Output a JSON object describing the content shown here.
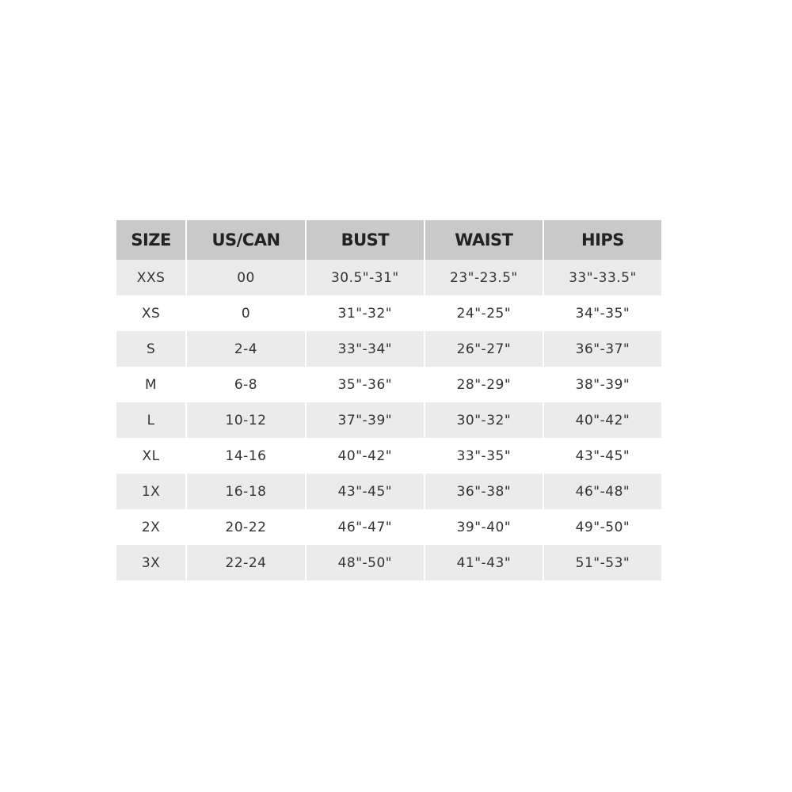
{
  "size_chart": {
    "columns": [
      "SIZE",
      "US/CAN",
      "BUST",
      "WAIST",
      "HIPS"
    ],
    "rows": [
      [
        "XXS",
        "00",
        "30.5\"-31\"",
        "23\"-23.5\"",
        "33\"-33.5\""
      ],
      [
        "XS",
        "0",
        "31\"-32\"",
        "24\"-25\"",
        "34\"-35\""
      ],
      [
        "S",
        "2-4",
        "33\"-34\"",
        "26\"-27\"",
        "36\"-37\""
      ],
      [
        "M",
        "6-8",
        "35\"-36\"",
        "28\"-29\"",
        "38\"-39\""
      ],
      [
        "L",
        "10-12",
        "37\"-39\"",
        "30\"-32\"",
        "40\"-42\""
      ],
      [
        "XL",
        "14-16",
        "40\"-42\"",
        "33\"-35\"",
        "43\"-45\""
      ],
      [
        "1X",
        "16-18",
        "43\"-45\"",
        "36\"-38\"",
        "46\"-48\""
      ],
      [
        "2X",
        "20-22",
        "46\"-47\"",
        "39\"-40\"",
        "49\"-50\""
      ],
      [
        "3X",
        "22-24",
        "48\"-50\"",
        "41\"-43\"",
        "51\"-53\""
      ]
    ],
    "colors": {
      "header_bg": "#c9c9c9",
      "stripe_bg": "#ebebeb",
      "row_bg": "#ffffff"
    }
  }
}
